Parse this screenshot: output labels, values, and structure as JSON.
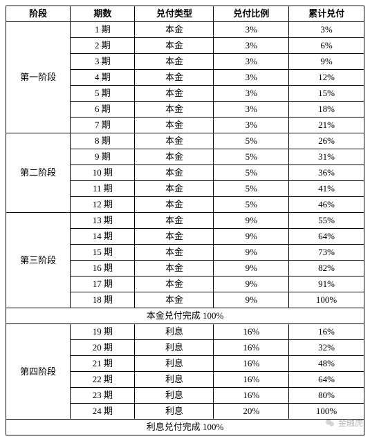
{
  "table": {
    "columns": [
      "阶段",
      "期数",
      "兑付类型",
      "兑付比例",
      "累计兑付"
    ],
    "col_widths": [
      "18%",
      "18%",
      "22%",
      "21%",
      "21%"
    ],
    "font_size_pt": 10,
    "border_color": "#000000",
    "background_color": "#ffffff",
    "text_color": "#000000",
    "stages": [
      {
        "label": "第一阶段",
        "rows": [
          {
            "period": "1 期",
            "type": "本金",
            "ratio": "3%",
            "cumulative": "3%"
          },
          {
            "period": "2 期",
            "type": "本金",
            "ratio": "3%",
            "cumulative": "6%"
          },
          {
            "period": "3 期",
            "type": "本金",
            "ratio": "3%",
            "cumulative": "9%"
          },
          {
            "period": "4 期",
            "type": "本金",
            "ratio": "3%",
            "cumulative": "12%"
          },
          {
            "period": "5 期",
            "type": "本金",
            "ratio": "3%",
            "cumulative": "15%"
          },
          {
            "period": "6 期",
            "type": "本金",
            "ratio": "3%",
            "cumulative": "18%"
          },
          {
            "period": "7 期",
            "type": "本金",
            "ratio": "3%",
            "cumulative": "21%"
          }
        ]
      },
      {
        "label": "第二阶段",
        "rows": [
          {
            "period": "8 期",
            "type": "本金",
            "ratio": "5%",
            "cumulative": "26%"
          },
          {
            "period": "9 期",
            "type": "本金",
            "ratio": "5%",
            "cumulative": "31%"
          },
          {
            "period": "10 期",
            "type": "本金",
            "ratio": "5%",
            "cumulative": "36%"
          },
          {
            "period": "11 期",
            "type": "本金",
            "ratio": "5%",
            "cumulative": "41%"
          },
          {
            "period": "12 期",
            "type": "本金",
            "ratio": "5%",
            "cumulative": "46%"
          }
        ]
      },
      {
        "label": "第三阶段",
        "rows": [
          {
            "period": "13 期",
            "type": "本金",
            "ratio": "9%",
            "cumulative": "55%"
          },
          {
            "period": "14 期",
            "type": "本金",
            "ratio": "9%",
            "cumulative": "64%"
          },
          {
            "period": "15 期",
            "type": "本金",
            "ratio": "9%",
            "cumulative": "73%"
          },
          {
            "period": "16 期",
            "type": "本金",
            "ratio": "9%",
            "cumulative": "82%"
          },
          {
            "period": "17 期",
            "type": "本金",
            "ratio": "9%",
            "cumulative": "91%"
          },
          {
            "period": "18 期",
            "type": "本金",
            "ratio": "9%",
            "cumulative": "100%"
          }
        ]
      }
    ],
    "subtotal1": "本金兑付完成 100%",
    "stages2": [
      {
        "label": "第四阶段",
        "rows": [
          {
            "period": "19 期",
            "type": "利息",
            "ratio": "16%",
            "cumulative": "16%"
          },
          {
            "period": "20 期",
            "type": "利息",
            "ratio": "16%",
            "cumulative": "32%"
          },
          {
            "period": "21 期",
            "type": "利息",
            "ratio": "16%",
            "cumulative": "48%"
          },
          {
            "period": "22 期",
            "type": "利息",
            "ratio": "16%",
            "cumulative": "64%"
          },
          {
            "period": "23 期",
            "type": "利息",
            "ratio": "16%",
            "cumulative": "80%"
          },
          {
            "period": "24 期",
            "type": "利息",
            "ratio": "20%",
            "cumulative": "100%"
          }
        ]
      }
    ],
    "subtotal2": "利息兑付完成 100%"
  },
  "watermark": {
    "text": "金融虎",
    "color": "rgba(120,120,120,0.55)"
  }
}
